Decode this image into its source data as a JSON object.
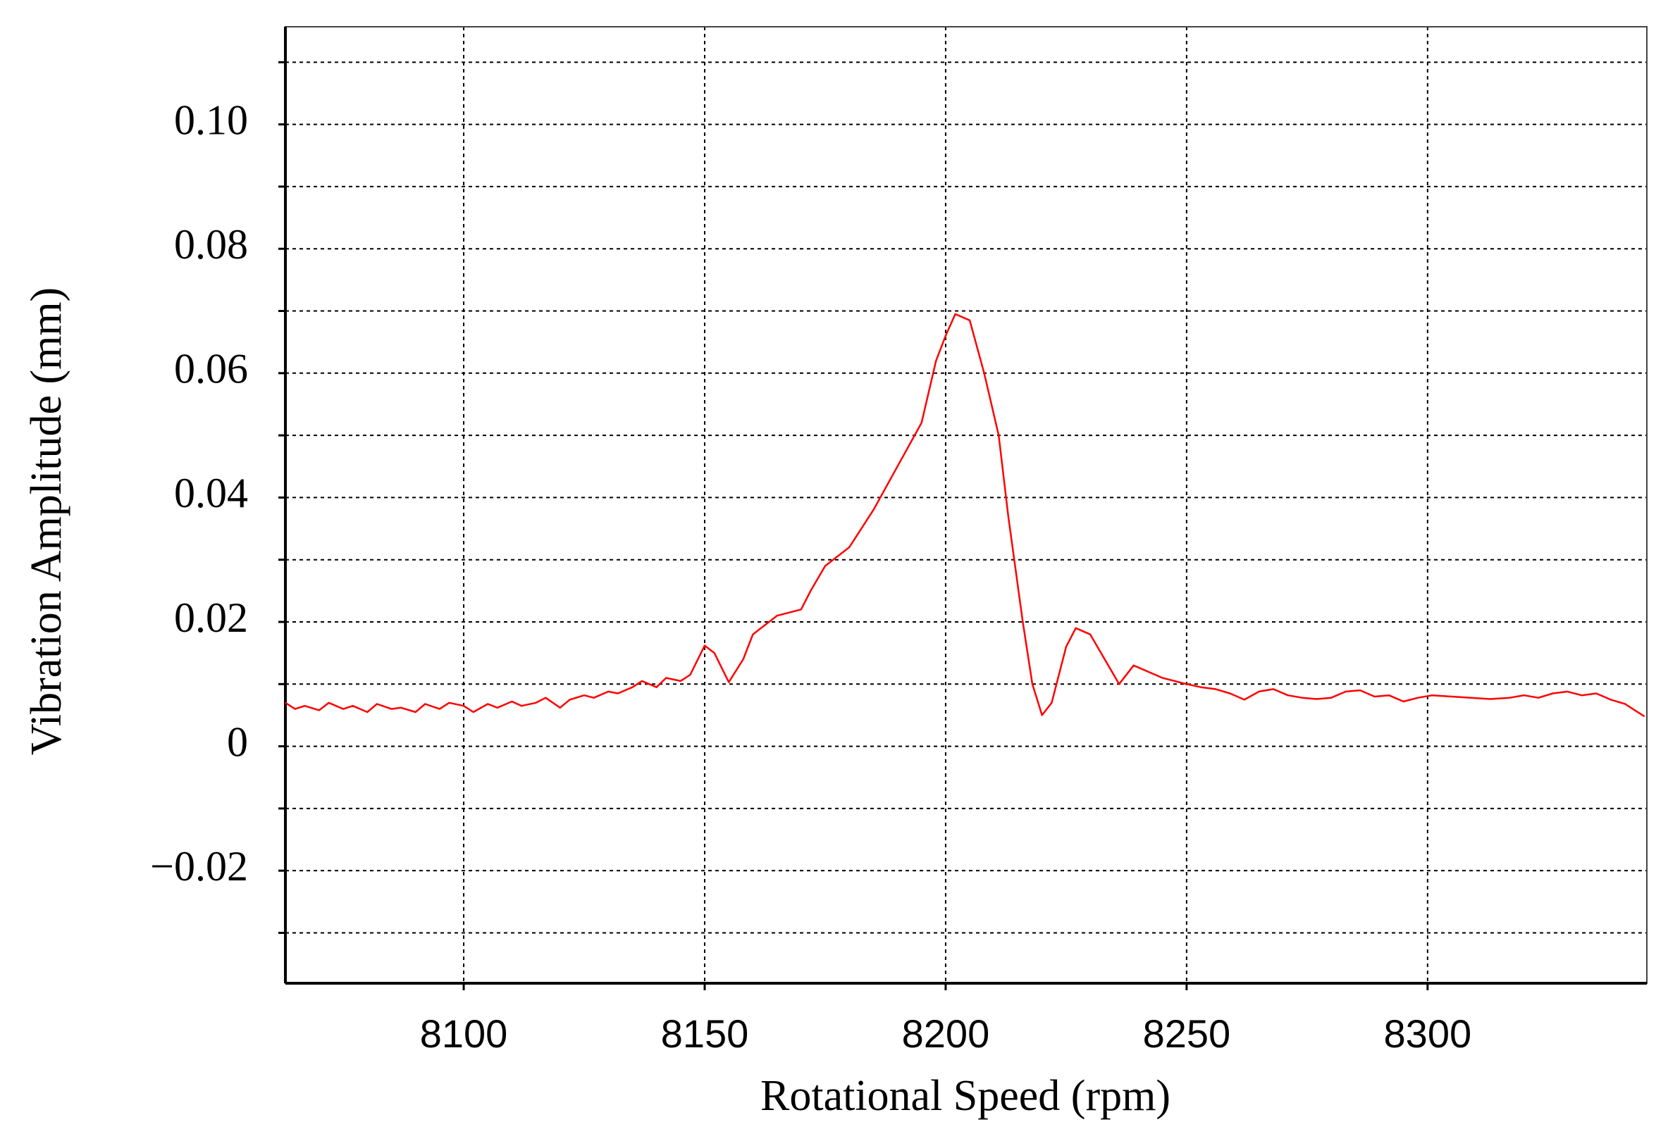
{
  "chart_data": {
    "type": "line",
    "x_label": "Rotational Speed (rpm)",
    "y_label": "Vibration Amplitude (mm)",
    "xlim": [
      8063,
      8345.5
    ],
    "ylim": [
      -0.0381,
      0.1157
    ],
    "xticks": [
      8100,
      8150,
      8200,
      8250,
      8300
    ],
    "yticks": [
      {
        "value": -0.02,
        "label": "−0.02"
      },
      0,
      0.02,
      0.04,
      0.06,
      0.08,
      {
        "value": 0.1,
        "label": "0.10"
      }
    ],
    "yminorticks": [
      -0.03,
      -0.01,
      0.01,
      0.03,
      0.05,
      0.07,
      0.09,
      0.11
    ],
    "grid": true,
    "x": [
      8063,
      8065,
      8067,
      8070,
      8072,
      8075,
      8077,
      8080,
      8082,
      8085,
      8087,
      8090,
      8092,
      8095,
      8097,
      8100,
      8102,
      8105,
      8107,
      8110,
      8112,
      8115,
      8117,
      8120,
      8122,
      8125,
      8127,
      8130,
      8132,
      8135,
      8137,
      8140,
      8142,
      8145,
      8147,
      8150,
      8152,
      8155,
      8158,
      8160,
      8165,
      8170,
      8172,
      8175,
      8180,
      8185,
      8190,
      8195,
      8198,
      8200,
      8202,
      8205,
      8208,
      8211,
      8213,
      8216,
      8218,
      8220,
      8222,
      8225,
      8227,
      8230,
      8233,
      8236,
      8239,
      8245,
      8250,
      8253,
      8256,
      8259,
      8262,
      8265,
      8268,
      8271,
      8274,
      8277,
      8280,
      8283,
      8286,
      8289,
      8292,
      8295,
      8298,
      8301,
      8305,
      8309,
      8313,
      8317,
      8320,
      8323,
      8326,
      8329,
      8332,
      8335,
      8338,
      8341,
      8343,
      8345
    ],
    "series": [
      {
        "name": "Vibration",
        "color": "#ff0000",
        "values": [
          0.007,
          0.006,
          0.0065,
          0.0058,
          0.007,
          0.006,
          0.0065,
          0.0055,
          0.0068,
          0.006,
          0.0062,
          0.0055,
          0.0068,
          0.006,
          0.007,
          0.0065,
          0.0055,
          0.0068,
          0.0062,
          0.0072,
          0.0065,
          0.007,
          0.0078,
          0.0062,
          0.0075,
          0.0082,
          0.0078,
          0.0088,
          0.0085,
          0.0095,
          0.0105,
          0.0095,
          0.011,
          0.0105,
          0.0115,
          0.0162,
          0.015,
          0.0103,
          0.014,
          0.018,
          0.021,
          0.022,
          0.025,
          0.029,
          0.032,
          0.038,
          0.045,
          0.052,
          0.062,
          0.066,
          0.0695,
          0.0685,
          0.06,
          0.05,
          0.037,
          0.02,
          0.01,
          0.005,
          0.007,
          0.016,
          0.019,
          0.018,
          0.014,
          0.01,
          0.013,
          0.011,
          0.01,
          0.0095,
          0.0092,
          0.0085,
          0.0075,
          0.0088,
          0.0092,
          0.0082,
          0.0078,
          0.0076,
          0.0078,
          0.0088,
          0.009,
          0.008,
          0.0082,
          0.0072,
          0.0078,
          0.0082,
          0.008,
          0.0078,
          0.0076,
          0.0078,
          0.0082,
          0.0078,
          0.0085,
          0.0088,
          0.0082,
          0.0085,
          0.0075,
          0.0068,
          0.0058,
          0.0048
        ]
      }
    ]
  }
}
